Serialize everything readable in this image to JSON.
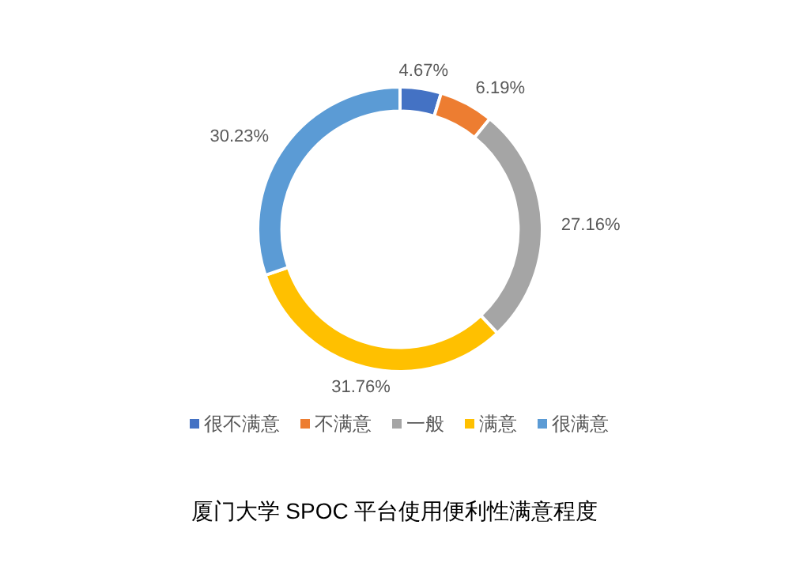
{
  "chart_data": {
    "type": "donut",
    "title": "厦门大学 SPOC 平台使用便利性满意程度",
    "categories": [
      "很不满意",
      "不满意",
      "一般",
      "满意",
      "很满意"
    ],
    "values": [
      4.67,
      6.19,
      27.16,
      31.76,
      30.23
    ],
    "value_labels": [
      "4.67%",
      "6.19%",
      "27.16%",
      "31.76%",
      "30.23%"
    ],
    "colors": [
      "#4472c4",
      "#ed7d31",
      "#a5a5a5",
      "#ffc000",
      "#5b9bd5"
    ],
    "legend": "bottom"
  }
}
